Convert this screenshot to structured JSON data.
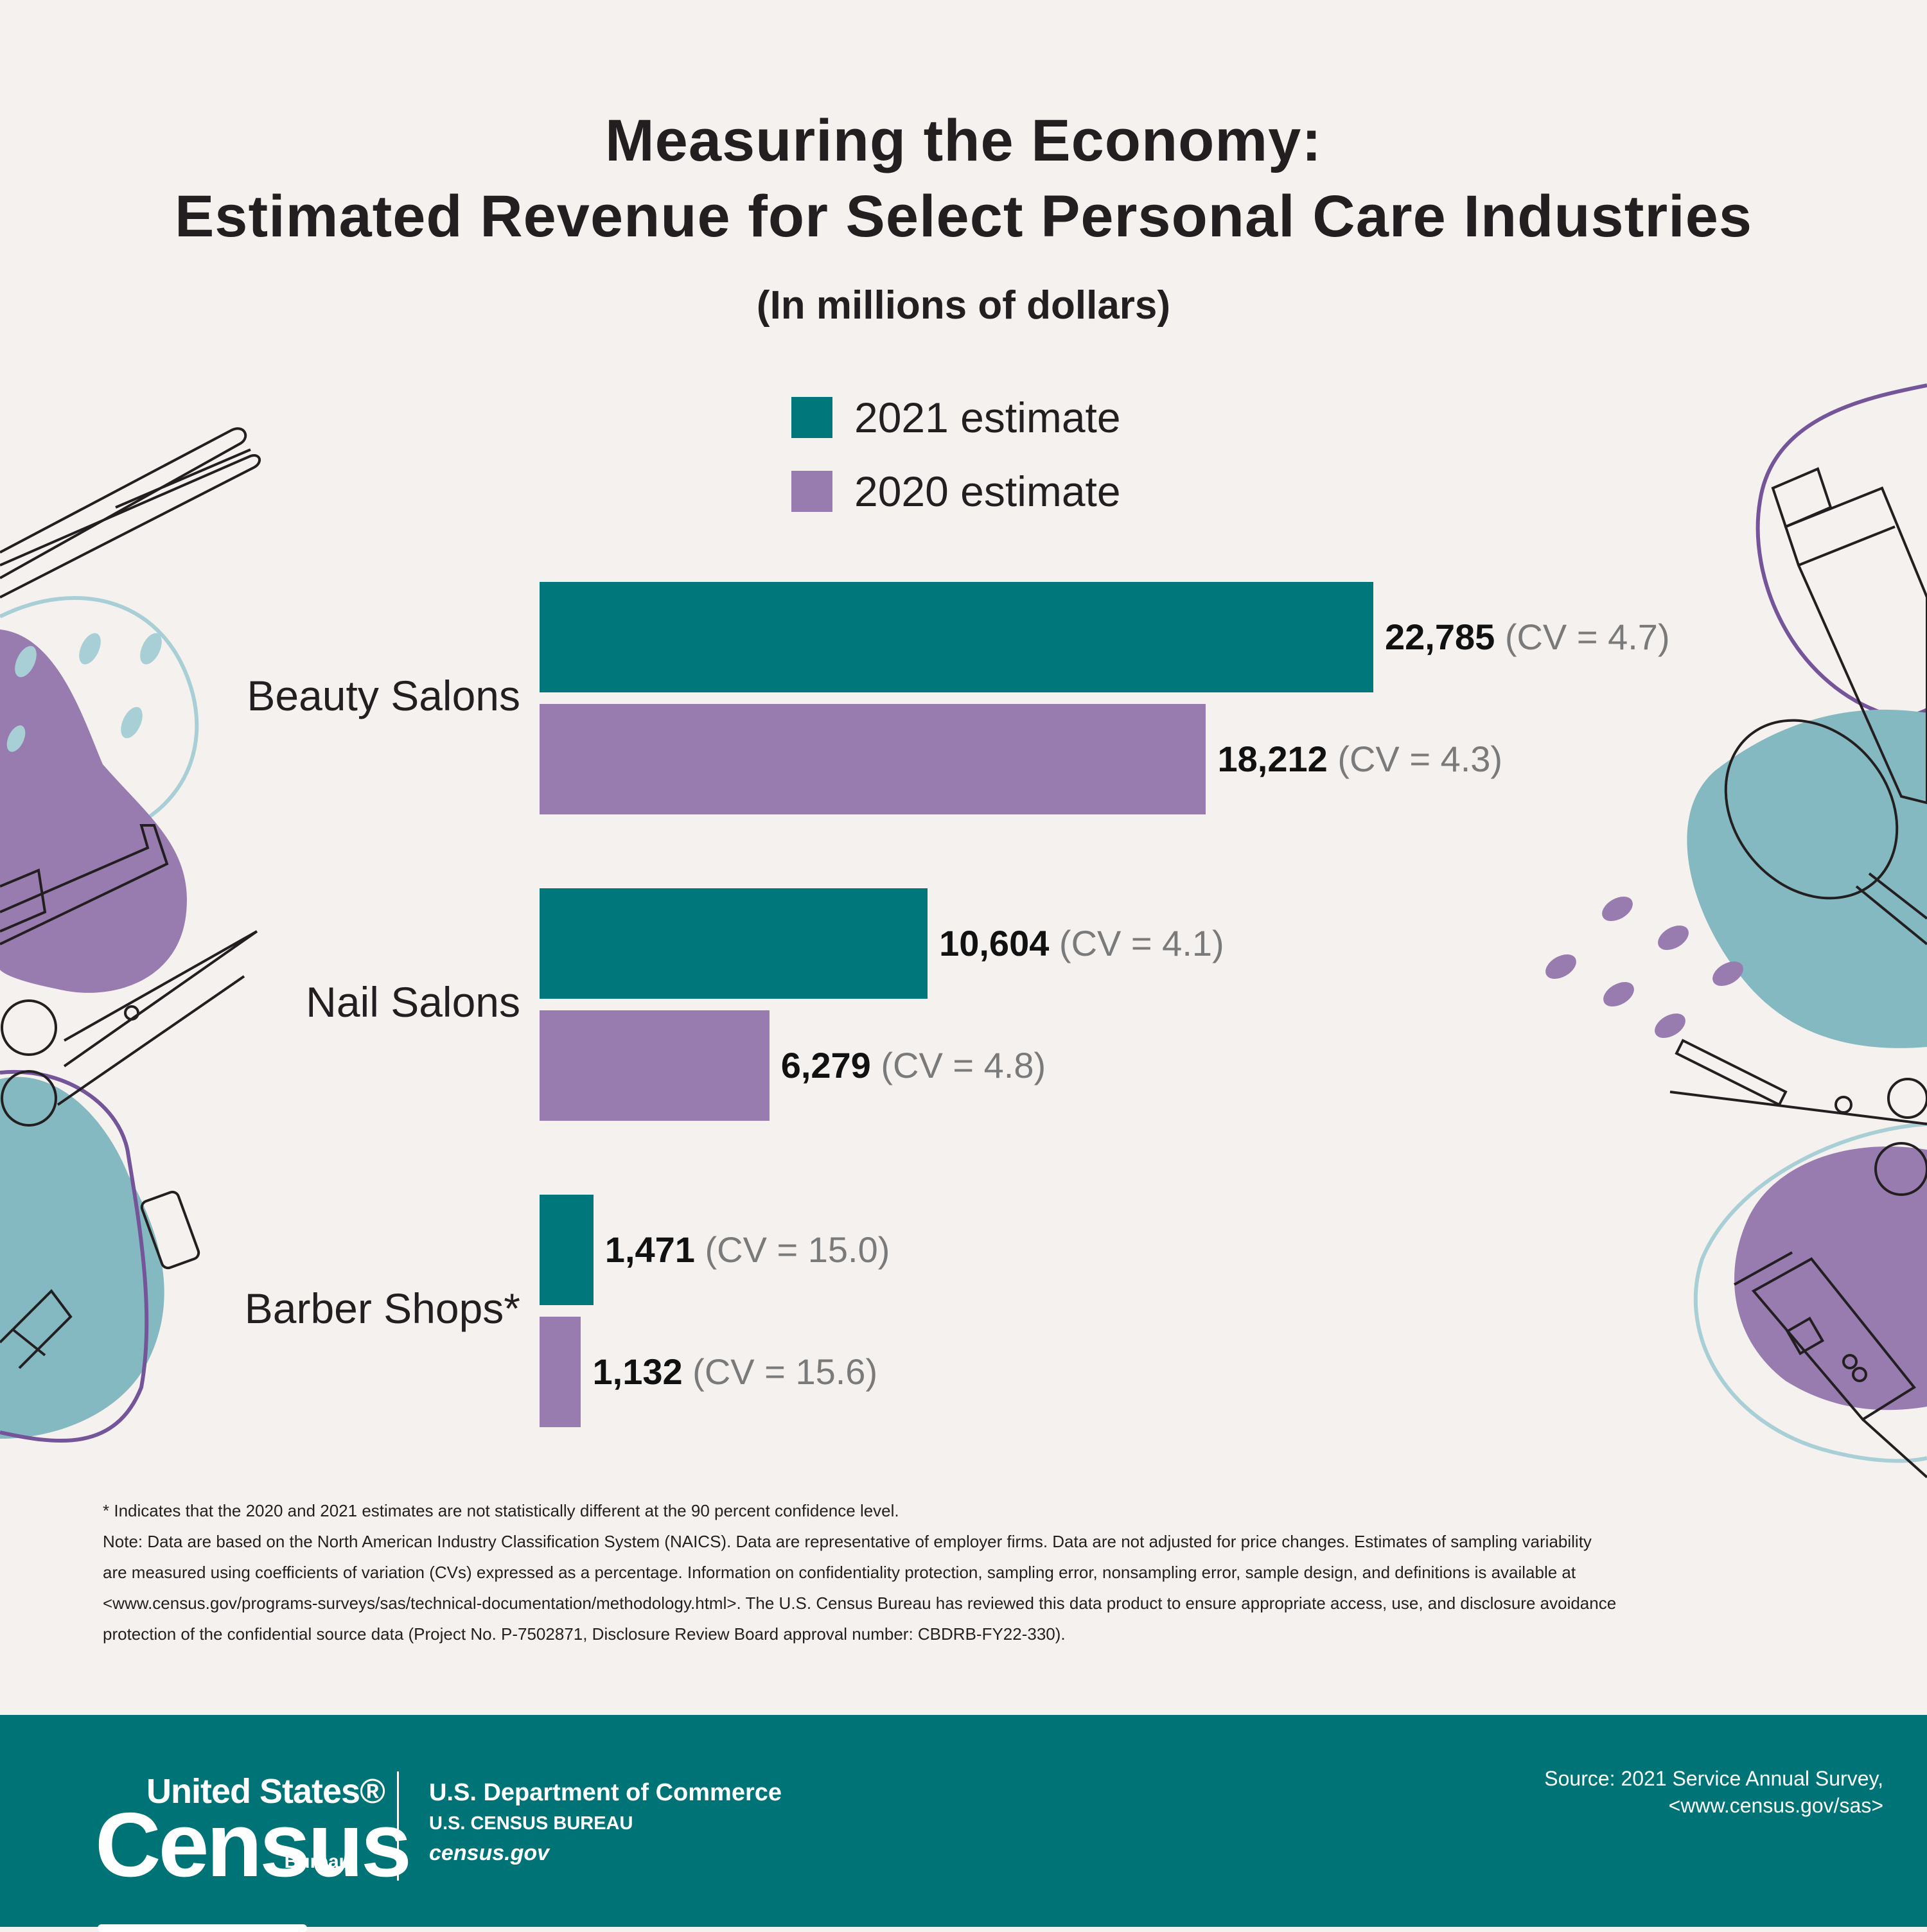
{
  "title_line1": "Measuring the Economy:",
  "title_line2": "Estimated Revenue for Select Personal Care Industries",
  "subtitle": "(In millions of dollars)",
  "colors": {
    "y2021": "#00787b",
    "y2020": "#987cb0",
    "background": "#f4f1ee",
    "footer": "#007377",
    "text": "#231f20",
    "cv_text": "#7a7a7a"
  },
  "chart_data": {
    "type": "bar",
    "orientation": "horizontal",
    "title": "Measuring the Economy: Estimated Revenue for Select Personal Care Industries",
    "subtitle": "(In millions of dollars)",
    "categories": [
      "Beauty Salons",
      "Nail Salons",
      "Barber Shops*"
    ],
    "series": [
      {
        "name": "2021 estimate",
        "values": [
          22785,
          10604,
          1471
        ],
        "labels": [
          "22,785",
          "10,604",
          "1,471"
        ],
        "cv": [
          "(CV = 4.7)",
          "(CV = 4.1)",
          "(CV = 15.0)"
        ]
      },
      {
        "name": "2020 estimate",
        "values": [
          18212,
          6279,
          1132
        ],
        "labels": [
          "18,212",
          "6,279",
          "1,132"
        ],
        "cv": [
          "(CV = 4.3)",
          "(CV = 4.8)",
          "(CV = 15.6)"
        ]
      }
    ],
    "legend": "top-center",
    "grid": false,
    "axes_visible": false
  },
  "footnotes": [
    "* Indicates that the 2020 and 2021 estimates are not statistically different at the 90 percent confidence level.",
    "Note: Data are based on the North American Industry Classification System (NAICS). Data are representative of employer firms. Data are not adjusted for price changes. Estimates of sampling variability",
    "are measured using coefficients of variation (CVs) expressed as a percentage. Information on confidentiality protection, sampling error, nonsampling error, sample design, and definitions is available at",
    "<www.census.gov/programs-surveys/sas/technical-documentation/methodology.html>. The U.S. Census Bureau has reviewed this data product to ensure appropriate access, use, and disclosure avoidance",
    "protection of the confidential source data (Project No. P-7502871, Disclosure Review Board approval number: CBDRB-FY22-330)."
  ],
  "footer": {
    "logo_line1": "United States®",
    "logo_line2": "Census",
    "logo_line3": "Bureau",
    "dept_line1": "U.S. Department of Commerce",
    "dept_line2": "U.S. CENSUS BUREAU",
    "dept_line3": "census.gov",
    "source_line1": "Source: 2021 Service Annual Survey,",
    "source_line2": "<www.census.gov/sas>"
  },
  "decorations": [
    "flat-iron-icon",
    "comb-icon",
    "scissors-icon",
    "round-brush-icon",
    "hair-dryer-icon",
    "spray-bottle-icon",
    "paddle-brush-icon",
    "razor-comb-icon",
    "hair-clipper-icon"
  ]
}
